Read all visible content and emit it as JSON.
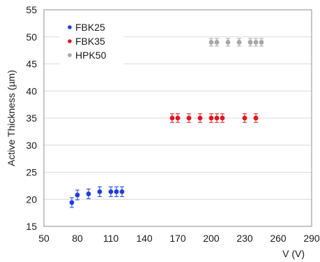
{
  "chart_data": {
    "type": "scatter",
    "title": "",
    "xlabel": "V (V)",
    "ylabel": "Active Thickness (µm)",
    "xlim": [
      50,
      290
    ],
    "ylim": [
      15,
      55
    ],
    "xticks": [
      "50",
      "80",
      "110",
      "140",
      "170",
      "200",
      "230",
      "260",
      "290"
    ],
    "yticks": [
      "15",
      "20",
      "25",
      "30",
      "35",
      "40",
      "45",
      "50",
      "55"
    ],
    "grid": "horizontal",
    "legend_position": "top-left",
    "series": [
      {
        "name": "FBK25",
        "color": "#1a3fe0",
        "x": [
          75,
          80,
          90,
          100,
          110,
          115,
          120
        ],
        "y": [
          19.4,
          20.8,
          21.0,
          21.4,
          21.4,
          21.4,
          21.4
        ],
        "err": [
          0.9,
          0.9,
          0.9,
          0.9,
          0.9,
          0.9,
          0.9
        ]
      },
      {
        "name": "FBK35",
        "color": "#e3141b",
        "x": [
          165,
          170,
          180,
          190,
          200,
          205,
          210,
          230,
          240
        ],
        "y": [
          35,
          35,
          35,
          35,
          35,
          35,
          35,
          35,
          35
        ],
        "err": [
          0.8,
          0.8,
          0.8,
          0.8,
          0.8,
          0.8,
          0.8,
          0.8,
          0.8
        ]
      },
      {
        "name": "HPK50",
        "color": "#a6a6a6",
        "x": [
          200,
          205,
          215,
          225,
          235,
          240,
          245
        ],
        "y": [
          49,
          49,
          49,
          49,
          49,
          49,
          49
        ],
        "err": [
          0.7,
          0.7,
          0.7,
          0.7,
          0.7,
          0.7,
          0.7
        ]
      }
    ]
  }
}
